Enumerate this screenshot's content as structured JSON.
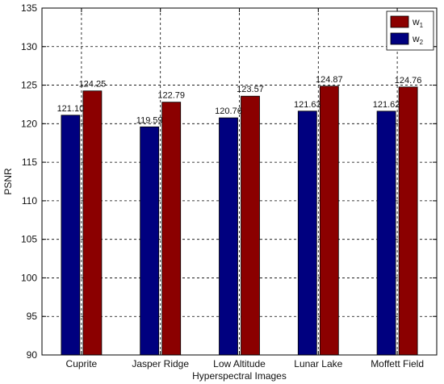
{
  "chart_data": {
    "type": "bar",
    "title": "",
    "xlabel": "Hyperspectral Images",
    "ylabel": "PSNR",
    "ylim": [
      90,
      135
    ],
    "yticks": [
      90,
      95,
      100,
      105,
      110,
      115,
      120,
      125,
      130,
      135
    ],
    "grid": true,
    "legend_position": "top-right",
    "categories": [
      "Cuprite",
      "Jasper Ridge",
      "Low Altitude",
      "Lunar Lake",
      "Moffett Field"
    ],
    "series": [
      {
        "name": "w2",
        "legend_base": "w",
        "legend_sub": "2",
        "color": "#00007f",
        "values": [
          121.1,
          119.59,
          120.76,
          121.63,
          121.62
        ],
        "labels": [
          "121.10",
          "119.59",
          "120.76",
          "121.63",
          "121.62"
        ]
      },
      {
        "name": "w1",
        "legend_base": "w",
        "legend_sub": "1",
        "color": "#8b0000",
        "values": [
          124.25,
          122.79,
          123.57,
          124.87,
          124.76
        ],
        "labels": [
          "124.25",
          "122.79",
          "123.57",
          "124.87",
          "124.76"
        ]
      }
    ],
    "legend_order": [
      1,
      0
    ]
  }
}
